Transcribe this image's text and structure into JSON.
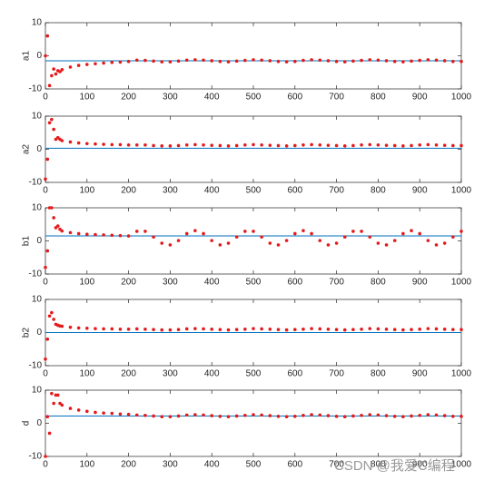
{
  "chart_data": [
    {
      "type": "line",
      "ylabel": "a1",
      "color": "#e41a1c",
      "x": [
        0,
        5,
        10,
        15,
        20,
        25,
        30,
        35,
        40,
        60,
        80,
        100,
        120,
        140,
        160,
        180,
        200,
        220,
        240,
        260,
        280,
        300,
        320,
        340,
        360,
        380,
        400,
        420,
        440,
        460,
        480,
        500,
        520,
        540,
        560,
        580,
        600,
        620,
        640,
        660,
        680,
        700,
        720,
        740,
        760,
        780,
        800,
        820,
        840,
        860,
        880,
        900,
        920,
        940,
        960,
        980,
        1000
      ],
      "values": [
        0,
        6,
        -9,
        -6,
        -4,
        -5.5,
        -4.5,
        -4.8,
        -4.2,
        -3.4,
        -2.9,
        -2.6,
        -2.4,
        -2.2,
        -2.0,
        -1.9,
        -1.7,
        -1.3,
        -1.4,
        -1.6,
        -1.8,
        -1.8,
        -1.6,
        -1.3,
        -1.2,
        -1.3,
        -1.5,
        -1.7,
        -1.8,
        -1.6,
        -1.4,
        -1.2,
        -1.3,
        -1.5,
        -1.7,
        -1.8,
        -1.7,
        -1.4,
        -1.2,
        -1.3,
        -1.5,
        -1.7,
        -1.8,
        -1.6,
        -1.4,
        -1.2,
        -1.3,
        -1.5,
        -1.7,
        -1.8,
        -1.6,
        -1.4,
        -1.2,
        -1.3,
        -1.5,
        -1.7,
        -1.7
      ],
      "hline": {
        "value": -1.5,
        "color": "#0072bd"
      },
      "xlim": [
        0,
        1000
      ],
      "xticks": [
        0,
        100,
        200,
        300,
        400,
        500,
        600,
        700,
        800,
        900,
        1000
      ],
      "ylim": [
        -10,
        10
      ],
      "yticks": [
        -10,
        0,
        10
      ]
    },
    {
      "type": "line",
      "ylabel": "a2",
      "color": "#e41a1c",
      "x": [
        0,
        5,
        10,
        15,
        20,
        25,
        30,
        35,
        40,
        60,
        80,
        100,
        120,
        140,
        160,
        180,
        200,
        220,
        240,
        260,
        280,
        300,
        320,
        340,
        360,
        380,
        400,
        420,
        440,
        460,
        480,
        500,
        520,
        540,
        560,
        580,
        600,
        620,
        640,
        660,
        680,
        700,
        720,
        740,
        760,
        780,
        800,
        820,
        840,
        860,
        880,
        900,
        920,
        940,
        960,
        980,
        1000
      ],
      "values": [
        -9,
        -3,
        8,
        9,
        6,
        3,
        3.5,
        3,
        2.6,
        2.2,
        1.9,
        1.7,
        1.6,
        1.5,
        1.4,
        1.4,
        1.3,
        1.3,
        1.3,
        1.1,
        1.0,
        1.0,
        1.1,
        1.3,
        1.4,
        1.3,
        1.2,
        1.1,
        1.0,
        1.1,
        1.3,
        1.4,
        1.3,
        1.2,
        1.1,
        1.0,
        1.1,
        1.3,
        1.4,
        1.3,
        1.2,
        1.1,
        1.0,
        1.1,
        1.3,
        1.4,
        1.3,
        1.2,
        1.1,
        1.0,
        1.1,
        1.3,
        1.4,
        1.3,
        1.2,
        1.1,
        1.1
      ],
      "hline": {
        "value": 0.3,
        "color": "#0072bd"
      },
      "xlim": [
        0,
        1000
      ],
      "xticks": [
        0,
        100,
        200,
        300,
        400,
        500,
        600,
        700,
        800,
        900,
        1000
      ],
      "ylim": [
        -10,
        10
      ],
      "yticks": [
        -10,
        0,
        10
      ]
    },
    {
      "type": "line",
      "ylabel": "b1",
      "color": "#e41a1c",
      "x": [
        0,
        5,
        10,
        15,
        20,
        25,
        30,
        35,
        40,
        60,
        80,
        100,
        120,
        140,
        160,
        180,
        200,
        220,
        240,
        260,
        280,
        300,
        320,
        340,
        360,
        380,
        400,
        420,
        440,
        460,
        480,
        500,
        520,
        540,
        560,
        580,
        600,
        620,
        640,
        660,
        680,
        700,
        720,
        740,
        760,
        780,
        800,
        820,
        840,
        860,
        880,
        900,
        920,
        940,
        960,
        980,
        1000
      ],
      "values": [
        -8,
        -3,
        10,
        10,
        7,
        4,
        4.5,
        3.5,
        3,
        2.5,
        2.2,
        2.0,
        1.9,
        1.8,
        1.7,
        1.6,
        1.5,
        2.9,
        2.9,
        1.2,
        -0.7,
        -1.2,
        0.1,
        2.2,
        3.1,
        2.2,
        0.1,
        -1.2,
        -0.7,
        1.2,
        2.9,
        2.9,
        1.2,
        -0.7,
        -1.2,
        0.1,
        2.2,
        3.1,
        2.2,
        0.1,
        -1.2,
        -0.7,
        1.2,
        2.9,
        2.9,
        1.2,
        -0.7,
        -1.2,
        0.1,
        2.2,
        3.1,
        2.2,
        0.1,
        -1.2,
        -0.7,
        1.2,
        2.9
      ],
      "hline": {
        "value": 1.5,
        "color": "#0072bd"
      },
      "xlim": [
        0,
        1000
      ],
      "xticks": [
        0,
        100,
        200,
        300,
        400,
        500,
        600,
        700,
        800,
        900,
        1000
      ],
      "ylim": [
        -10,
        10
      ],
      "yticks": [
        -10,
        0,
        10
      ]
    },
    {
      "type": "line",
      "ylabel": "b2",
      "color": "#e41a1c",
      "x": [
        0,
        5,
        10,
        15,
        20,
        25,
        30,
        35,
        40,
        60,
        80,
        100,
        120,
        140,
        160,
        180,
        200,
        220,
        240,
        260,
        280,
        300,
        320,
        340,
        360,
        380,
        400,
        420,
        440,
        460,
        480,
        500,
        520,
        540,
        560,
        580,
        600,
        620,
        640,
        660,
        680,
        700,
        720,
        740,
        760,
        780,
        800,
        820,
        840,
        860,
        880,
        900,
        920,
        940,
        960,
        980,
        1000
      ],
      "values": [
        -8,
        -2,
        5,
        6,
        4,
        2.5,
        2.2,
        2,
        1.9,
        1.6,
        1.4,
        1.3,
        1.2,
        1.1,
        1.1,
        1.0,
        1.0,
        1.1,
        1.0,
        0.9,
        0.8,
        0.8,
        0.9,
        1.1,
        1.2,
        1.1,
        1.0,
        0.9,
        0.8,
        0.9,
        1.0,
        1.2,
        1.1,
        1.0,
        0.9,
        0.8,
        0.9,
        1.0,
        1.2,
        1.1,
        1.0,
        0.9,
        0.8,
        0.9,
        1.0,
        1.2,
        1.1,
        1.0,
        0.9,
        0.8,
        0.9,
        1.0,
        1.2,
        1.1,
        1.0,
        0.9,
        0.9
      ],
      "hline": {
        "value": 0,
        "color": "#0072bd"
      },
      "xlim": [
        0,
        1000
      ],
      "xticks": [
        0,
        100,
        200,
        300,
        400,
        500,
        600,
        700,
        800,
        900,
        1000
      ],
      "ylim": [
        -10,
        10
      ],
      "yticks": [
        -10,
        0,
        10
      ]
    },
    {
      "type": "line",
      "ylabel": "d",
      "color": "#e41a1c",
      "x": [
        0,
        5,
        10,
        15,
        20,
        25,
        30,
        35,
        40,
        60,
        80,
        100,
        120,
        140,
        160,
        180,
        200,
        220,
        240,
        260,
        280,
        300,
        320,
        340,
        360,
        380,
        400,
        420,
        440,
        460,
        480,
        500,
        520,
        540,
        560,
        580,
        600,
        620,
        640,
        660,
        680,
        700,
        720,
        740,
        760,
        780,
        800,
        820,
        840,
        860,
        880,
        900,
        920,
        940,
        960,
        980,
        1000
      ],
      "values": [
        -10,
        2,
        -3,
        9,
        6,
        8.5,
        8.5,
        6,
        5.5,
        4.5,
        4,
        3.6,
        3.3,
        3.1,
        3,
        2.8,
        2.7,
        2.5,
        2.4,
        2.2,
        2.0,
        2.0,
        2.2,
        2.5,
        2.6,
        2.5,
        2.3,
        2.1,
        2.0,
        2.2,
        2.4,
        2.6,
        2.5,
        2.3,
        2.1,
        2.0,
        2.1,
        2.4,
        2.6,
        2.5,
        2.3,
        2.1,
        2.0,
        2.2,
        2.4,
        2.6,
        2.5,
        2.3,
        2.1,
        2.0,
        2.2,
        2.4,
        2.6,
        2.5,
        2.3,
        2.1,
        2.1
      ],
      "hline": {
        "value": 2.2,
        "color": "#0072bd"
      },
      "xlim": [
        0,
        1000
      ],
      "xticks": [
        0,
        100,
        200,
        300,
        400,
        500,
        600,
        700,
        800,
        900,
        1000
      ],
      "ylim": [
        -10,
        10
      ],
      "yticks": [
        -10,
        0,
        10
      ]
    }
  ],
  "watermark": "CSDN @我爱C编程"
}
